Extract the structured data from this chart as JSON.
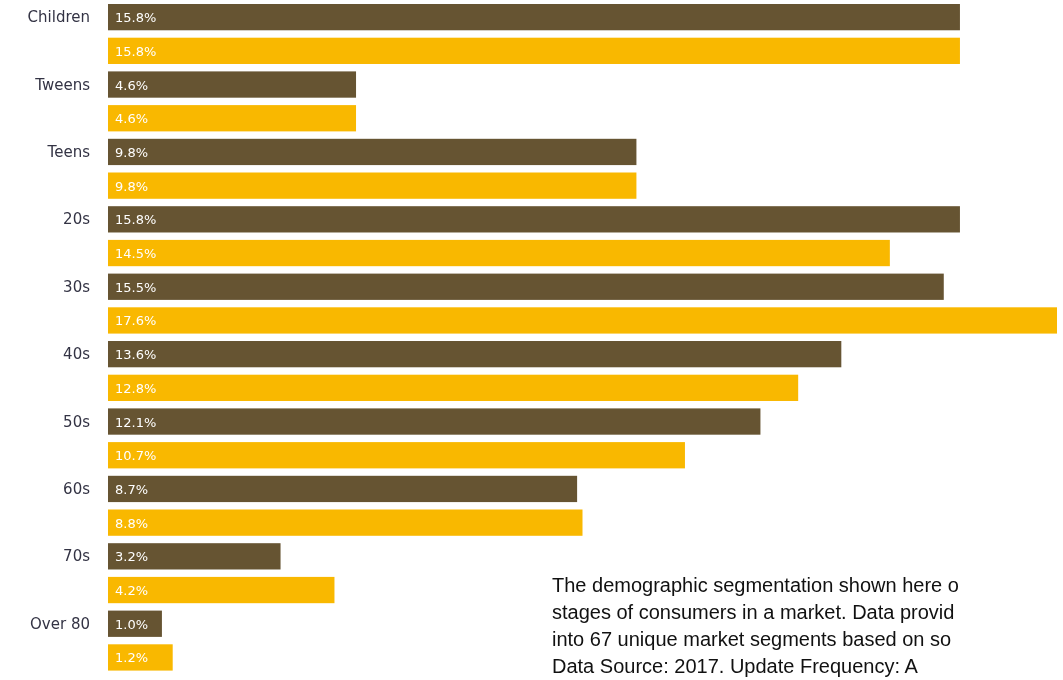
{
  "chart_data": {
    "type": "bar",
    "orientation": "horizontal",
    "categories": [
      "Children",
      "Tweens",
      "Teens",
      "20s",
      "30s",
      "40s",
      "50s",
      "60s",
      "70s",
      "Over 80"
    ],
    "series": [
      {
        "color": "#665432",
        "values": [
          15.8,
          4.6,
          9.8,
          15.8,
          15.5,
          13.6,
          12.1,
          8.7,
          3.2,
          1.0
        ],
        "value_labels": [
          "15.8%",
          "4.6%",
          "9.8%",
          "15.8%",
          "15.5%",
          "13.6%",
          "12.1%",
          "8.7%",
          "3.2%",
          "1.0%"
        ]
      },
      {
        "color": "#f9b800",
        "values": [
          15.8,
          4.6,
          9.8,
          14.5,
          17.6,
          12.8,
          10.7,
          8.8,
          4.2,
          1.2
        ],
        "value_labels": [
          "15.8%",
          "4.6%",
          "9.8%",
          "14.5%",
          "17.6%",
          "12.8%",
          "10.7%",
          "8.8%",
          "4.2%",
          "1.2%"
        ]
      }
    ],
    "annotations": [
      "The demographic segmentation shown here o",
      "stages of consumers in a market. Data provid",
      "into 67 unique market segments based on so",
      "Data Source: 2017. Update Frequency: A"
    ]
  }
}
